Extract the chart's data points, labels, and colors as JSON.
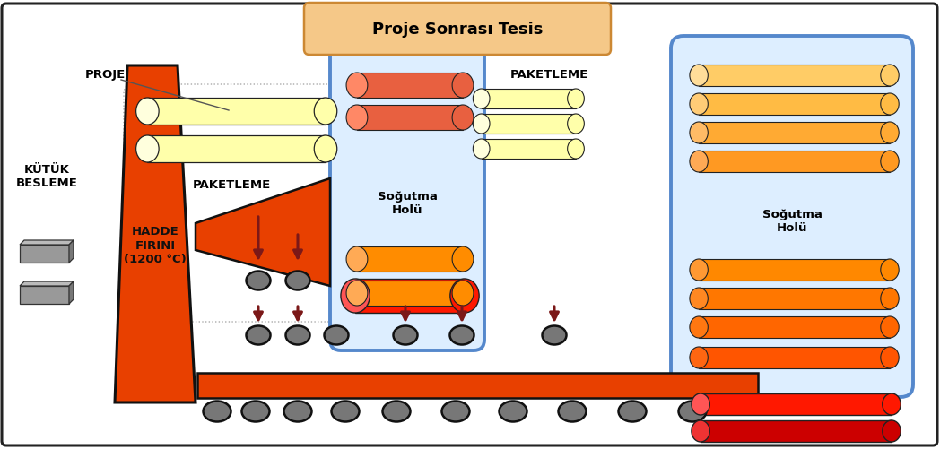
{
  "title": "Proje Sonrası Tesis",
  "title_bg": "#f5c888",
  "title_border": "#cc8833",
  "bg_color": "#ffffff",
  "furnace_color": "#e84000",
  "furnace_text": "HADDE\nFIRINI\n(1200 °C)",
  "kutuk_label": "KÜTÜK\nBESLEME",
  "proje_label": "PROJE",
  "paketleme_label1": "PAKETLEME",
  "paketleme_label2": "PAKETLEME",
  "sogutma_label1": "Soğutma\nHolü",
  "sogutma_label2": "Soğutma\nHolü",
  "sogutma_border": "#5588cc",
  "sogutma_bg": "#ddeeff",
  "arrow_color": "#7b1818",
  "roller_fill": "#777777",
  "roller_edge": "#111111",
  "conveyor_color": "#e84000"
}
